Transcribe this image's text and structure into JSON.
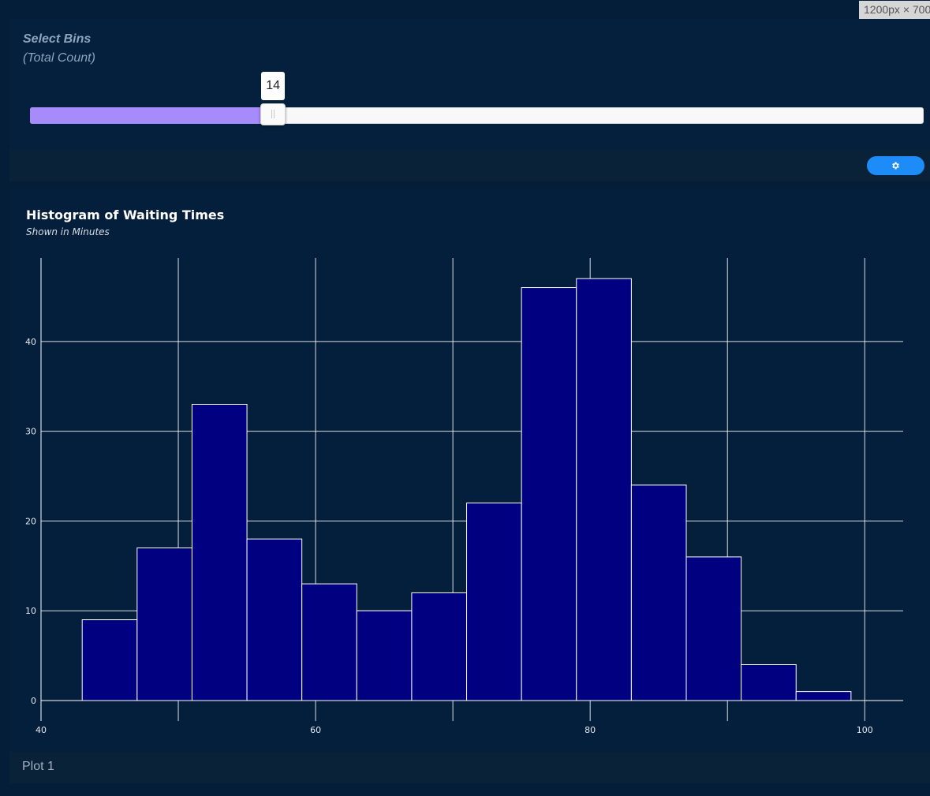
{
  "viewport_badge": "1200px × 700",
  "slider": {
    "label": "Select Bins",
    "sublabel": "(Total Count)",
    "value": 14,
    "value_text": "14",
    "min": 1,
    "max": 50,
    "fill_color": "#a78bfa"
  },
  "toolbar": {
    "settings_icon": "gear-icon",
    "button_color": "#1d8cf8"
  },
  "footer": {
    "label": "Plot 1"
  },
  "chart_data": {
    "type": "bar",
    "title": "Histogram of Waiting Times",
    "subtitle": "Shown in Minutes",
    "xlabel": "",
    "ylabel": "",
    "bins": [
      {
        "x0": 43.0,
        "x1": 47.0,
        "count": 9
      },
      {
        "x0": 47.0,
        "x1": 51.0,
        "count": 17
      },
      {
        "x0": 51.0,
        "x1": 55.0,
        "count": 33
      },
      {
        "x0": 55.0,
        "x1": 59.0,
        "count": 18
      },
      {
        "x0": 59.0,
        "x1": 63.0,
        "count": 13
      },
      {
        "x0": 63.0,
        "x1": 67.0,
        "count": 10
      },
      {
        "x0": 67.0,
        "x1": 71.0,
        "count": 12
      },
      {
        "x0": 71.0,
        "x1": 75.0,
        "count": 22
      },
      {
        "x0": 75.0,
        "x1": 79.0,
        "count": 46
      },
      {
        "x0": 79.0,
        "x1": 83.0,
        "count": 47
      },
      {
        "x0": 83.0,
        "x1": 87.0,
        "count": 24
      },
      {
        "x0": 87.0,
        "x1": 91.0,
        "count": 16
      },
      {
        "x0": 91.0,
        "x1": 95.0,
        "count": 4
      },
      {
        "x0": 95.0,
        "x1": 99.0,
        "count": 1
      }
    ],
    "xlim": [
      40,
      102.8
    ],
    "ylim": [
      0,
      49.3
    ],
    "xticks": [
      40,
      60,
      80,
      100
    ],
    "xgrid_minor": [
      50,
      70,
      90
    ],
    "yticks": [
      0,
      10,
      20,
      30,
      40
    ],
    "grid": true,
    "bar_color": "#000080",
    "bar_edge_color": "#ffffff",
    "grid_color": "#ffffff"
  }
}
